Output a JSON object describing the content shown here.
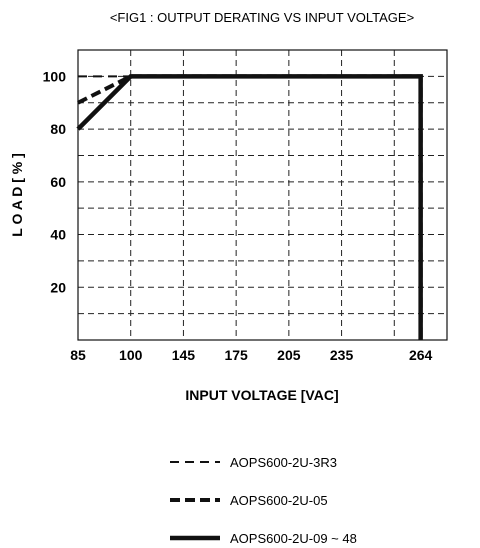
{
  "chart_data": {
    "type": "line",
    "title": "<FIG1 : OUTPUT DERATING VS INPUT VOLTAGE>",
    "xlabel": "INPUT VOLTAGE [VAC]",
    "ylabel": "L O A D  [ % ]",
    "x_ticks": [
      "85",
      "100",
      "145",
      "175",
      "205",
      "235",
      "264"
    ],
    "y_ticks": [
      "20",
      "40",
      "60",
      "80",
      "100"
    ],
    "ylim": [
      0,
      110
    ],
    "grid": true,
    "legend_position": "bottom",
    "series": [
      {
        "name": "AOPS600-2U-3R3",
        "style": "thin-dashed",
        "points": [
          {
            "x": "85",
            "y": 100
          },
          {
            "x": "100",
            "y": 100
          },
          {
            "x": "264",
            "y": 100
          },
          {
            "x": "264",
            "y": 0
          }
        ]
      },
      {
        "name": "AOPS600-2U-05",
        "style": "thick-dashed",
        "points": [
          {
            "x": "85",
            "y": 90
          },
          {
            "x": "100",
            "y": 100
          },
          {
            "x": "264",
            "y": 100
          },
          {
            "x": "264",
            "y": 0
          }
        ]
      },
      {
        "name": "AOPS600-2U-09 ~ 48",
        "style": "thick-solid",
        "points": [
          {
            "x": "85",
            "y": 80
          },
          {
            "x": "100",
            "y": 100
          },
          {
            "x": "264",
            "y": 100
          },
          {
            "x": "264",
            "y": 0
          }
        ]
      }
    ]
  }
}
